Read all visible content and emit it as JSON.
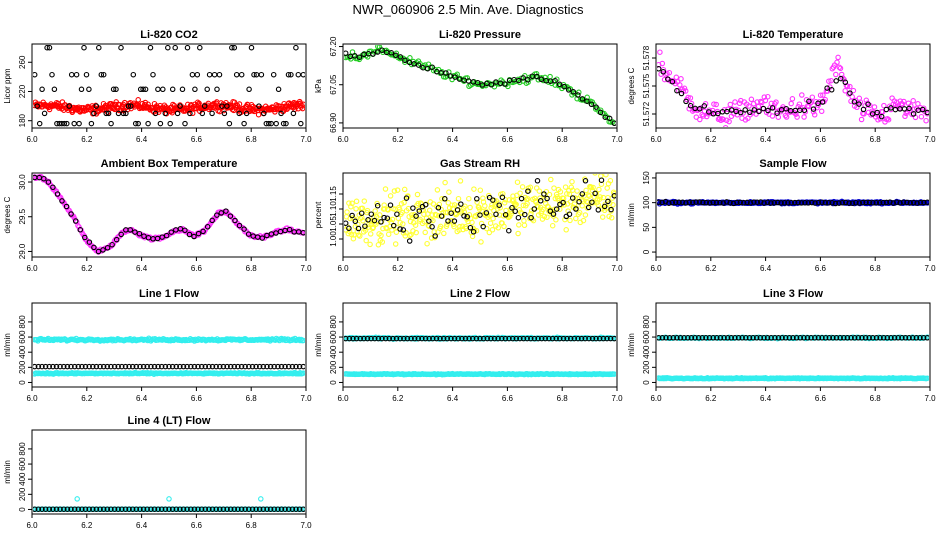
{
  "figure": {
    "title": "NWR_060906  2.5 Min. Ave. Diagnostics"
  },
  "colors": {
    "black": "#000000",
    "red": "#ff0000",
    "green": "#22cc22",
    "magenta": "#ff33ff",
    "yellow": "#ffff33",
    "blue": "#0000cc",
    "cyan": "#33eeee"
  },
  "chart_data": [
    {
      "id": "co2",
      "type": "scatter",
      "title": "Li-820 CO2",
      "ylabel": "Licor ppm",
      "xlim": [
        6.0,
        7.0
      ],
      "ylim": [
        170,
        285
      ],
      "xticks": [
        "6.0",
        "6.2",
        "6.4",
        "6.6",
        "6.8",
        "7.0"
      ],
      "yticks": [
        "180",
        "220",
        "260"
      ],
      "series": [
        {
          "name": "dense",
          "color": "red",
          "gen": {
            "mode": "band",
            "center": 198,
            "amp": 3,
            "noise": 3,
            "n": 380
          }
        },
        {
          "name": "ref",
          "color": "black",
          "gen": {
            "mode": "levels",
            "levels": [
              176,
              190,
              200,
              223,
              243,
              280
            ],
            "n": 110
          }
        }
      ]
    },
    {
      "id": "pressure",
      "type": "scatter",
      "title": "Li-820 Pressure",
      "ylabel": "kPa",
      "xlim": [
        6.0,
        7.0
      ],
      "ylim": [
        66.88,
        67.21
      ],
      "xticks": [
        "6.0",
        "6.2",
        "6.4",
        "6.6",
        "6.8",
        "7.0"
      ],
      "yticks": [
        "66.90",
        "67.05",
        "67.20"
      ],
      "series": [
        {
          "name": "dense",
          "color": "green",
          "gen": {
            "mode": "curve",
            "pts": [
              [
                6.0,
                67.17
              ],
              [
                6.05,
                67.16
              ],
              [
                6.1,
                67.17
              ],
              [
                6.15,
                67.19
              ],
              [
                6.2,
                67.16
              ],
              [
                6.3,
                67.12
              ],
              [
                6.4,
                67.08
              ],
              [
                6.5,
                67.05
              ],
              [
                6.6,
                67.06
              ],
              [
                6.7,
                67.08
              ],
              [
                6.8,
                67.05
              ],
              [
                6.9,
                66.98
              ],
              [
                7.0,
                66.89
              ]
            ],
            "noise": 0.008,
            "n": 160
          }
        },
        {
          "name": "ref",
          "color": "black",
          "gen": {
            "mode": "curve",
            "pts": [
              [
                6.0,
                67.17
              ],
              [
                6.05,
                67.16
              ],
              [
                6.1,
                67.17
              ],
              [
                6.15,
                67.19
              ],
              [
                6.2,
                67.16
              ],
              [
                6.3,
                67.12
              ],
              [
                6.4,
                67.08
              ],
              [
                6.5,
                67.05
              ],
              [
                6.6,
                67.06
              ],
              [
                6.7,
                67.08
              ],
              [
                6.8,
                67.05
              ],
              [
                6.9,
                66.98
              ],
              [
                7.0,
                66.89
              ]
            ],
            "noise": 0.004,
            "n": 60
          }
        }
      ]
    },
    {
      "id": "licor_temp",
      "type": "scatter",
      "title": "Li-820 Temperature",
      "ylabel": "degrees C",
      "xlim": [
        6.0,
        7.0
      ],
      "ylim": [
        51.5705,
        51.5795
      ],
      "xticks": [
        "6.0",
        "6.2",
        "6.4",
        "6.6",
        "6.8",
        "7.0"
      ],
      "yticks": [
        "51.572",
        "51.575",
        "51.578"
      ],
      "series": [
        {
          "name": "dense",
          "color": "magenta",
          "gen": {
            "mode": "curve",
            "pts": [
              [
                6.0,
                51.5782
              ],
              [
                6.03,
                51.5765
              ],
              [
                6.07,
                51.5755
              ],
              [
                6.12,
                51.5735
              ],
              [
                6.17,
                51.5722
              ],
              [
                6.25,
                51.5718
              ],
              [
                6.3,
                51.5722
              ],
              [
                6.38,
                51.573
              ],
              [
                6.45,
                51.5722
              ],
              [
                6.52,
                51.5728
              ],
              [
                6.58,
                51.5725
              ],
              [
                6.62,
                51.574
              ],
              [
                6.66,
                51.5775
              ],
              [
                6.7,
                51.5745
              ],
              [
                6.75,
                51.5722
              ],
              [
                6.82,
                51.5718
              ],
              [
                6.88,
                51.573
              ],
              [
                6.94,
                51.5722
              ],
              [
                7.0,
                51.572
              ]
            ],
            "noise": 0.0006,
            "n": 230
          }
        },
        {
          "name": "ref",
          "color": "black",
          "gen": {
            "mode": "curve",
            "pts": [
              [
                6.0,
                51.5775
              ],
              [
                6.05,
                51.5755
              ],
              [
                6.12,
                51.573
              ],
              [
                6.2,
                51.572
              ],
              [
                6.3,
                51.5722
              ],
              [
                6.4,
                51.5726
              ],
              [
                6.5,
                51.5724
              ],
              [
                6.6,
                51.5728
              ],
              [
                6.66,
                51.576
              ],
              [
                6.72,
                51.5735
              ],
              [
                6.8,
                51.572
              ],
              [
                6.9,
                51.5724
              ],
              [
                7.0,
                51.5721
              ]
            ],
            "noise": 0.0003,
            "n": 60
          }
        }
      ]
    },
    {
      "id": "box_temp",
      "type": "scatter",
      "title": "Ambient Box Temperature",
      "ylabel": "degrees C",
      "xlim": [
        6.0,
        7.0
      ],
      "ylim": [
        28.92,
        30.13
      ],
      "xticks": [
        "6.0",
        "6.2",
        "6.4",
        "6.6",
        "6.8",
        "7.0"
      ],
      "yticks": [
        "29.0",
        "29.5",
        "30.0"
      ],
      "series": [
        {
          "name": "dense",
          "color": "magenta",
          "gen": {
            "mode": "curve",
            "pts": [
              [
                6.0,
                30.05
              ],
              [
                6.03,
                30.07
              ],
              [
                6.06,
                30.0
              ],
              [
                6.1,
                29.8
              ],
              [
                6.15,
                29.5
              ],
              [
                6.2,
                29.15
              ],
              [
                6.24,
                29.0
              ],
              [
                6.28,
                29.05
              ],
              [
                6.33,
                29.27
              ],
              [
                6.36,
                29.32
              ],
              [
                6.4,
                29.23
              ],
              [
                6.44,
                29.18
              ],
              [
                6.48,
                29.2
              ],
              [
                6.52,
                29.3
              ],
              [
                6.55,
                29.32
              ],
              [
                6.59,
                29.22
              ],
              [
                6.63,
                29.3
              ],
              [
                6.68,
                29.55
              ],
              [
                6.71,
                29.57
              ],
              [
                6.75,
                29.4
              ],
              [
                6.8,
                29.22
              ],
              [
                6.84,
                29.2
              ],
              [
                6.88,
                29.26
              ],
              [
                6.93,
                29.32
              ],
              [
                6.97,
                29.28
              ],
              [
                7.0,
                29.27
              ]
            ],
            "noise": 0.01,
            "n": 250
          }
        },
        {
          "name": "ref",
          "color": "black",
          "gen": {
            "mode": "curve",
            "pts": [
              [
                6.0,
                30.05
              ],
              [
                6.03,
                30.07
              ],
              [
                6.06,
                30.0
              ],
              [
                6.1,
                29.8
              ],
              [
                6.15,
                29.5
              ],
              [
                6.2,
                29.15
              ],
              [
                6.24,
                29.0
              ],
              [
                6.28,
                29.05
              ],
              [
                6.33,
                29.27
              ],
              [
                6.36,
                29.32
              ],
              [
                6.4,
                29.23
              ],
              [
                6.44,
                29.18
              ],
              [
                6.48,
                29.2
              ],
              [
                6.52,
                29.3
              ],
              [
                6.55,
                29.32
              ],
              [
                6.59,
                29.22
              ],
              [
                6.63,
                29.3
              ],
              [
                6.68,
                29.55
              ],
              [
                6.71,
                29.57
              ],
              [
                6.75,
                29.4
              ],
              [
                6.8,
                29.22
              ],
              [
                6.84,
                29.2
              ],
              [
                6.88,
                29.26
              ],
              [
                6.93,
                29.32
              ],
              [
                6.97,
                29.28
              ],
              [
                7.0,
                29.27
              ]
            ],
            "noise": 0.008,
            "n": 60
          }
        }
      ]
    },
    {
      "id": "rh",
      "type": "scatter",
      "title": "Gas Stream RH",
      "ylabel": "percent",
      "xlim": [
        6.0,
        7.0
      ],
      "ylim": [
        0.94,
        1.22
      ],
      "xticks": [
        "6.0",
        "6.2",
        "6.4",
        "6.6",
        "6.8",
        "7.0"
      ],
      "yticks": [
        "1.00",
        "1.05",
        "1.10",
        "1.15"
      ],
      "series": [
        {
          "name": "dense",
          "color": "yellow",
          "gen": {
            "mode": "curve",
            "pts": [
              [
                6.0,
                1.06
              ],
              [
                6.5,
                1.09
              ],
              [
                7.0,
                1.14
              ]
            ],
            "noise": 0.04,
            "n": 420
          }
        },
        {
          "name": "ref",
          "color": "black",
          "gen": {
            "mode": "curve",
            "pts": [
              [
                6.0,
                1.06
              ],
              [
                6.5,
                1.09
              ],
              [
                7.0,
                1.14
              ]
            ],
            "noise": 0.035,
            "n": 85
          }
        }
      ]
    },
    {
      "id": "sample_flow",
      "type": "scatter",
      "title": "Sample Flow",
      "ylabel": "ml/min",
      "xlim": [
        6.0,
        7.0
      ],
      "ylim": [
        -10,
        160
      ],
      "xticks": [
        "6.0",
        "6.2",
        "6.4",
        "6.6",
        "6.8",
        "7.0"
      ],
      "yticks": [
        "0",
        "50",
        "100",
        "150"
      ],
      "series": [
        {
          "name": "dense",
          "color": "blue",
          "gen": {
            "mode": "band",
            "center": 100,
            "amp": 0,
            "noise": 1,
            "n": 300
          }
        },
        {
          "name": "ref",
          "color": "black",
          "gen": {
            "mode": "band",
            "center": 100,
            "amp": 0,
            "noise": 0.8,
            "n": 80
          }
        }
      ]
    },
    {
      "id": "line1",
      "type": "scatter",
      "title": "Line 1 Flow",
      "ylabel": "ml/min",
      "xlim": [
        6.0,
        7.0
      ],
      "ylim": [
        -60,
        1050
      ],
      "xticks": [
        "6.0",
        "6.2",
        "6.4",
        "6.6",
        "6.8",
        "7.0"
      ],
      "yticks": [
        "0",
        "200",
        "400",
        "600",
        "800"
      ],
      "series": [
        {
          "name": "upper",
          "color": "cyan",
          "gen": {
            "mode": "band",
            "center": 565,
            "amp": 0,
            "noise": 7,
            "n": 260
          }
        },
        {
          "name": "lower",
          "color": "cyan",
          "gen": {
            "mode": "band",
            "center": 120,
            "amp": 0,
            "noise": 4,
            "n": 260
          }
        },
        {
          "name": "ref",
          "color": "black",
          "gen": {
            "mode": "band",
            "center": 210,
            "amp": 0,
            "noise": 0,
            "n": 75
          }
        }
      ]
    },
    {
      "id": "line2",
      "type": "scatter",
      "title": "Line 2 Flow",
      "ylabel": "ml/min",
      "xlim": [
        6.0,
        7.0
      ],
      "ylim": [
        -60,
        1050
      ],
      "xticks": [
        "6.0",
        "6.2",
        "6.4",
        "6.6",
        "6.8",
        "7.0"
      ],
      "yticks": [
        "0",
        "200",
        "400",
        "600",
        "800"
      ],
      "series": [
        {
          "name": "upper",
          "color": "cyan",
          "gen": {
            "mode": "band",
            "center": 585,
            "amp": 0,
            "noise": 5,
            "n": 260
          }
        },
        {
          "name": "lower",
          "color": "cyan",
          "gen": {
            "mode": "band",
            "center": 110,
            "amp": 0,
            "noise": 3,
            "n": 260
          }
        },
        {
          "name": "ref",
          "color": "black",
          "gen": {
            "mode": "band",
            "center": 580,
            "amp": 0,
            "noise": 0,
            "n": 75
          }
        }
      ]
    },
    {
      "id": "line3",
      "type": "scatter",
      "title": "Line 3 Flow",
      "ylabel": "ml/min",
      "xlim": [
        6.0,
        7.0
      ],
      "ylim": [
        -60,
        1050
      ],
      "xticks": [
        "6.0",
        "6.2",
        "6.4",
        "6.6",
        "6.8",
        "7.0"
      ],
      "yticks": [
        "0",
        "200",
        "400",
        "600",
        "800"
      ],
      "series": [
        {
          "name": "upper",
          "color": "cyan",
          "gen": {
            "mode": "band",
            "center": 590,
            "amp": 0,
            "noise": 4,
            "n": 200
          }
        },
        {
          "name": "lower",
          "color": "cyan",
          "gen": {
            "mode": "band",
            "center": 55,
            "amp": 0,
            "noise": 3,
            "n": 260
          }
        },
        {
          "name": "ref",
          "color": "black",
          "gen": {
            "mode": "band",
            "center": 590,
            "amp": 0,
            "noise": 0,
            "n": 75
          }
        }
      ]
    },
    {
      "id": "line4",
      "type": "scatter",
      "title": "Line 4 (LT) Flow",
      "ylabel": "ml/min",
      "xlim": [
        6.0,
        7.0
      ],
      "ylim": [
        -60,
        1050
      ],
      "xticks": [
        "6.0",
        "6.2",
        "6.4",
        "6.6",
        "6.8",
        "7.0"
      ],
      "yticks": [
        "0",
        "200",
        "400",
        "600",
        "800"
      ],
      "series": [
        {
          "name": "base",
          "color": "cyan",
          "gen": {
            "mode": "band",
            "center": 3,
            "amp": 0,
            "noise": 1,
            "n": 200
          }
        },
        {
          "name": "spikes",
          "color": "cyan",
          "gen": {
            "mode": "points",
            "xs": [
              6.165,
              6.5,
              6.835
            ],
            "ys": [
              140,
              140,
              140
            ]
          }
        },
        {
          "name": "ref",
          "color": "black",
          "gen": {
            "mode": "band",
            "center": 3,
            "amp": 0,
            "noise": 0,
            "n": 75
          }
        }
      ]
    }
  ]
}
